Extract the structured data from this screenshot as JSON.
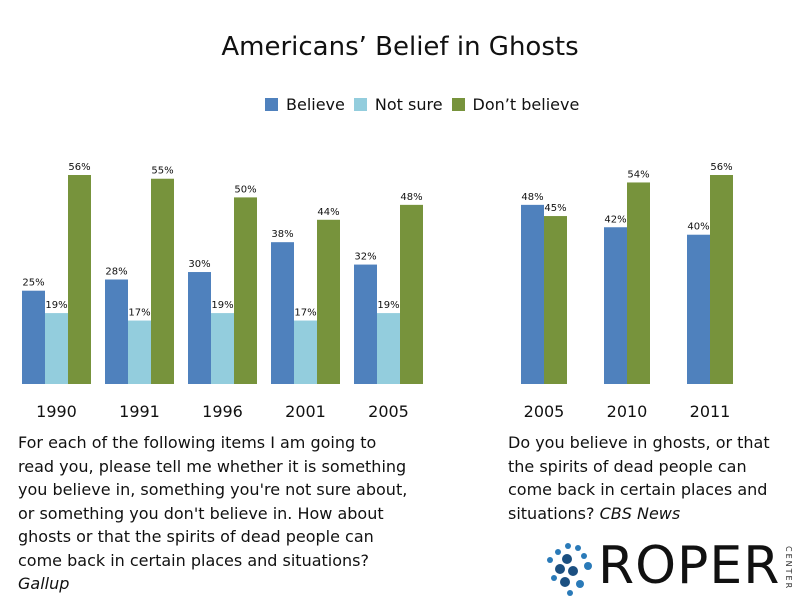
{
  "chart_data": [
    {
      "type": "bar",
      "title": "Americans’ Belief in Ghosts",
      "categories": [
        "1990",
        "1991",
        "1996",
        "2001",
        "2005"
      ],
      "series": [
        {
          "name": "Believe",
          "values": [
            25,
            28,
            30,
            38,
            32
          ]
        },
        {
          "name": "Not sure",
          "values": [
            19,
            17,
            19,
            17,
            19
          ]
        },
        {
          "name": "Don’t believe",
          "values": [
            56,
            55,
            50,
            44,
            48
          ]
        }
      ],
      "value_suffix": "%",
      "ylim": [
        0,
        56
      ],
      "grid": false,
      "legend": "top-center"
    },
    {
      "type": "bar",
      "categories": [
        "2005",
        "2010",
        "2011"
      ],
      "series": [
        {
          "name": "Believe",
          "values": [
            48,
            42,
            40
          ]
        },
        {
          "name": "Don’t believe",
          "values": [
            45,
            54,
            56
          ]
        }
      ],
      "value_suffix": "%",
      "ylim": [
        0,
        56
      ],
      "grid": false
    }
  ],
  "colors": {
    "believe": "#4f81bd",
    "not_sure": "#93cddd",
    "dont_believe": "#77933c"
  },
  "captions": {
    "left_text": "For each of the following items I am going to read you, please tell me whether it is something you believe in, something you're not sure about, or something you don't believe in. How about ghosts or that the spirits of dead people can come back in certain places and situations?",
    "left_source": "Gallup",
    "right_text": "Do you believe in ghosts, or that the spirits of dead people can come back in certain places and situations?",
    "right_source": "CBS News"
  },
  "logo": {
    "word": "ROPER",
    "sub": "CENTER"
  }
}
